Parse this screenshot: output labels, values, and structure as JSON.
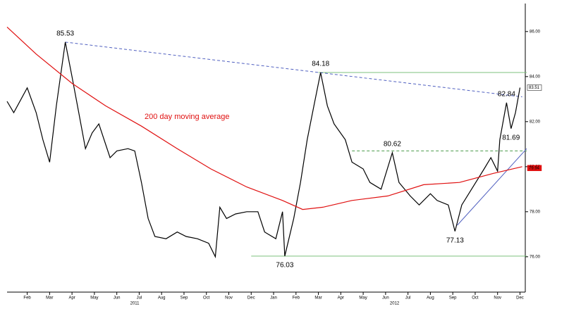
{
  "chart_data": {
    "type": "line",
    "xlim": [
      0.1,
      23.3
    ],
    "ylim": [
      74.4,
      87.4
    ],
    "xticks": [
      {
        "value": 1,
        "label": "Feb"
      },
      {
        "value": 2,
        "label": "Mar"
      },
      {
        "value": 3,
        "label": "Apr"
      },
      {
        "value": 4,
        "label": "May"
      },
      {
        "value": 5,
        "label": "Jun"
      },
      {
        "value": 6,
        "label": "Jul"
      },
      {
        "value": 7,
        "label": "Aug"
      },
      {
        "value": 8,
        "label": "Sep"
      },
      {
        "value": 9,
        "label": "Oct"
      },
      {
        "value": 10,
        "label": "Nov"
      },
      {
        "value": 11,
        "label": "Dec"
      },
      {
        "value": 12,
        "label": "Jan"
      },
      {
        "value": 13,
        "label": "Feb"
      },
      {
        "value": 14,
        "label": "Mar"
      },
      {
        "value": 15,
        "label": "Apr"
      },
      {
        "value": 16,
        "label": "May"
      },
      {
        "value": 17,
        "label": "Jun"
      },
      {
        "value": 18,
        "label": "Jul"
      },
      {
        "value": 19,
        "label": "Aug"
      },
      {
        "value": 20,
        "label": "Sep"
      },
      {
        "value": 21,
        "label": "Oct"
      },
      {
        "value": 22,
        "label": "Nov"
      },
      {
        "value": 23,
        "label": "Dec"
      }
    ],
    "year_ticks": [
      {
        "value": 5.8,
        "label": "2011"
      },
      {
        "value": 17.4,
        "label": "2012"
      }
    ],
    "yticks": [
      {
        "value": 76,
        "label": "76.00"
      },
      {
        "value": 78,
        "label": "78.00"
      },
      {
        "value": 80,
        "label": "80.00"
      },
      {
        "value": 82,
        "label": "82.00"
      },
      {
        "value": 84,
        "label": "84.00"
      },
      {
        "value": 86,
        "label": "86.00"
      }
    ],
    "series": [
      {
        "color": "#000000",
        "x": [
          0.1,
          0.4,
          1.0,
          1.4,
          1.7,
          2.0,
          2.3,
          2.7,
          3.0,
          3.3,
          3.6,
          3.9,
          4.2,
          4.7,
          5.0,
          5.5,
          5.8,
          6.1,
          6.4,
          6.7,
          7.2,
          7.7,
          8.1,
          8.6,
          9.1,
          9.4,
          9.6,
          9.9,
          10.3,
          10.8,
          11.3,
          11.6,
          12.1,
          12.4,
          12.5,
          12.9,
          13.2,
          13.5,
          13.8,
          14.1,
          14.4,
          14.7,
          15.2,
          15.5,
          16.0,
          16.3,
          16.8,
          17.3,
          17.6,
          18.1,
          18.5,
          19.0,
          19.3,
          19.8,
          20.1,
          20.4,
          20.9,
          21.4,
          21.7,
          22.0,
          22.1,
          22.4,
          22.6,
          22.8,
          23.0
        ],
        "values": [
          82.9,
          82.4,
          83.5,
          82.4,
          81.2,
          80.2,
          82.7,
          85.53,
          84.0,
          82.4,
          80.8,
          81.5,
          81.9,
          80.4,
          80.7,
          80.8,
          80.7,
          79.3,
          77.7,
          76.9,
          76.8,
          77.1,
          76.9,
          76.8,
          76.6,
          76.0,
          78.2,
          77.7,
          77.9,
          78.0,
          78.0,
          77.1,
          76.8,
          78.0,
          76.03,
          77.7,
          79.3,
          81.2,
          82.7,
          84.18,
          82.7,
          81.9,
          81.2,
          80.2,
          79.9,
          79.3,
          79.0,
          80.62,
          79.3,
          78.7,
          78.3,
          78.8,
          78.5,
          78.3,
          77.13,
          78.3,
          79.1,
          79.9,
          80.4,
          79.8,
          81.2,
          82.84,
          81.69,
          82.4,
          83.51
        ]
      },
      {
        "name": "200 day moving average",
        "color": "#e01010",
        "x": [
          0.1,
          1.4,
          3.0,
          4.5,
          6.1,
          7.7,
          9.2,
          10.8,
          12.4,
          13.3,
          14.2,
          15.5,
          17.1,
          18.7,
          20.3,
          21.8,
          23.1
        ],
        "values": [
          86.2,
          85.0,
          83.7,
          82.7,
          81.8,
          80.8,
          79.9,
          79.1,
          78.5,
          78.1,
          78.2,
          78.5,
          78.7,
          79.2,
          79.3,
          79.7,
          80.0
        ]
      }
    ],
    "annotations": [
      {
        "x": 2.7,
        "value": 85.53,
        "position": "above"
      },
      {
        "x": 14.1,
        "value": 84.18,
        "position": "above"
      },
      {
        "x": 17.3,
        "value": 80.62,
        "position": "above"
      },
      {
        "x": 22.4,
        "value": 82.84,
        "position": "above"
      },
      {
        "x": 22.6,
        "value": 81.69,
        "position": "below"
      },
      {
        "x": 20.1,
        "value": 77.13,
        "position": "below"
      },
      {
        "x": 12.5,
        "value": 76.03,
        "position": "below"
      }
    ],
    "reference_lines": [
      {
        "x": [
          14.0,
          23.3
        ],
        "y": [
          84.18,
          84.18
        ],
        "color": "#7cc07c",
        "dash": false
      },
      {
        "x": [
          15.5,
          23.3
        ],
        "y": [
          80.7,
          80.7
        ],
        "color": "#4a9a4a",
        "dash": true
      },
      {
        "x": [
          11.0,
          23.3
        ],
        "y": [
          76.03,
          76.03
        ],
        "color": "#7cc07c",
        "dash": false
      },
      {
        "x": [
          2.7,
          23.1
        ],
        "y": [
          85.53,
          83.1
        ],
        "color": "#5060c0",
        "dash": true
      },
      {
        "x": [
          20.2,
          23.3
        ],
        "y": [
          77.4,
          80.8
        ],
        "color": "#5060c0",
        "dash": false
      }
    ],
    "last_labels": [
      {
        "value": 83.51,
        "color": "#000000"
      },
      {
        "value": 79.94,
        "color": "#e01010"
      }
    ]
  }
}
